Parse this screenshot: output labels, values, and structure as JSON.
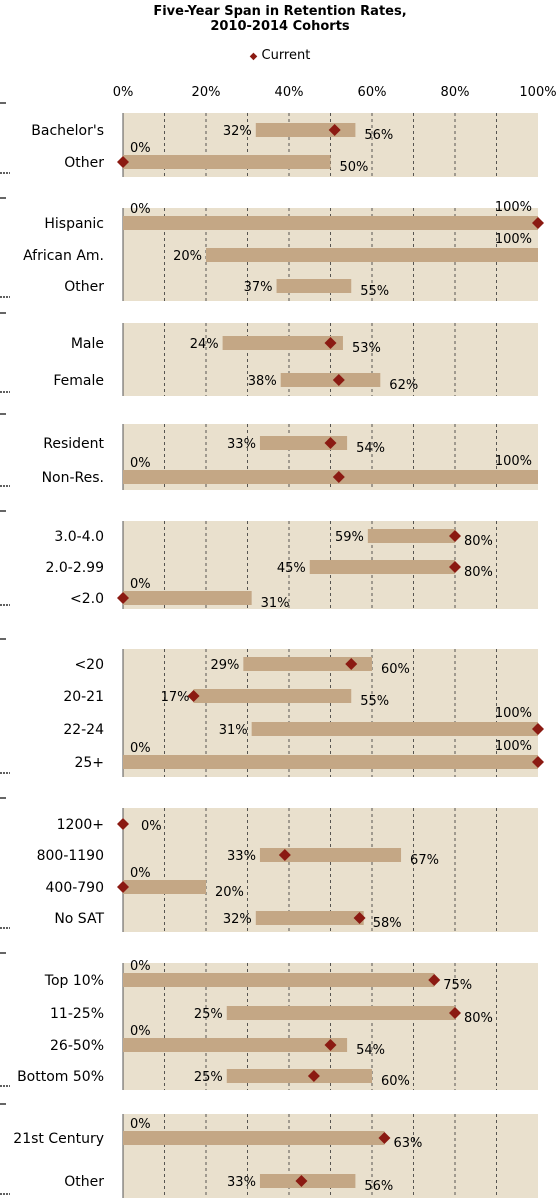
{
  "chart_data": {
    "type": "range-bar",
    "title_line1": "Five-Year Span in Retention Rates,",
    "title_line2": "2010-2014 Cohorts",
    "legend": "Current",
    "xlim": [
      0,
      100
    ],
    "x_ticks": [
      "0%",
      "20%",
      "40%",
      "60%",
      "80%",
      "100%"
    ],
    "colors": {
      "panel": "#e9e0cd",
      "bar": "#c4a785",
      "marker": "#8b1a12",
      "grid": "#333333"
    },
    "groups": [
      {
        "rows": [
          {
            "label": "Bachelor's",
            "min": 32,
            "max": 56,
            "current": 51
          },
          {
            "label": "Other",
            "min": 0,
            "max": 50,
            "current": 0
          }
        ]
      },
      {
        "rows": [
          {
            "label": "Hispanic",
            "min": 0,
            "max": 100,
            "current": 100
          },
          {
            "label": "African Am.",
            "min": 20,
            "max": 100,
            "current": null
          },
          {
            "label": "Other",
            "min": 37,
            "max": 55,
            "current": null
          }
        ]
      },
      {
        "rows": [
          {
            "label": "Male",
            "min": 24,
            "max": 53,
            "current": 50
          },
          {
            "label": "Female",
            "min": 38,
            "max": 62,
            "current": 52
          }
        ]
      },
      {
        "rows": [
          {
            "label": "Resident",
            "min": 33,
            "max": 54,
            "current": 50
          },
          {
            "label": "Non-Res.",
            "min": 0,
            "max": 100,
            "current": 52
          }
        ]
      },
      {
        "rows": [
          {
            "label": "3.0-4.0",
            "min": 59,
            "max": 80,
            "current": 80
          },
          {
            "label": "2.0-2.99",
            "min": 45,
            "max": 80,
            "current": 80
          },
          {
            "label": "<2.0",
            "min": 0,
            "max": 31,
            "current": 0
          }
        ]
      },
      {
        "rows": [
          {
            "label": "<20",
            "min": 29,
            "max": 60,
            "current": 55
          },
          {
            "label": "20-21",
            "min": 17,
            "max": 55,
            "current": 17
          },
          {
            "label": "22-24",
            "min": 31,
            "max": 100,
            "current": 100
          },
          {
            "label": "25+",
            "min": 0,
            "max": 100,
            "current": 100
          }
        ]
      },
      {
        "rows": [
          {
            "label": "1200+",
            "min": 0,
            "max": 0,
            "current": 0
          },
          {
            "label": "800-1190",
            "min": 33,
            "max": 67,
            "current": 39
          },
          {
            "label": "400-790",
            "min": 0,
            "max": 20,
            "current": 0
          },
          {
            "label": "No SAT",
            "min": 32,
            "max": 58,
            "current": 57
          }
        ]
      },
      {
        "rows": [
          {
            "label": "Top 10%",
            "min": 0,
            "max": 75,
            "current": 75
          },
          {
            "label": "11-25%",
            "min": 25,
            "max": 80,
            "current": 80
          },
          {
            "label": "26-50%",
            "min": 0,
            "max": 54,
            "current": 50
          },
          {
            "label": "Bottom 50%",
            "min": 25,
            "max": 60,
            "current": 46
          }
        ]
      },
      {
        "rows": [
          {
            "label": "21st Century",
            "min": 0,
            "max": 63,
            "current": 63
          },
          {
            "label": "Other",
            "min": 33,
            "max": 56,
            "current": 43
          }
        ]
      }
    ]
  }
}
